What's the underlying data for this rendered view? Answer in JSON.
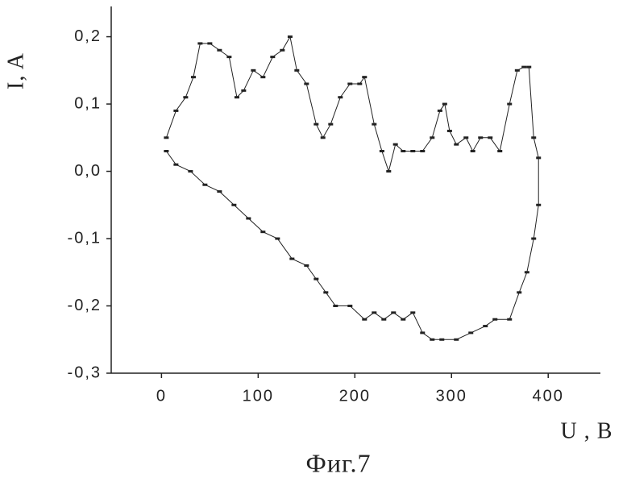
{
  "chart_data": {
    "type": "line",
    "xlabel": "U , B",
    "ylabel": "I, A",
    "caption": "Фиг.7",
    "xlim": [
      -52,
      454
    ],
    "ylim": [
      -0.3,
      0.245
    ],
    "xticks": [
      0,
      100,
      200,
      300,
      400
    ],
    "yticks": [
      {
        "value": -0.3,
        "label": "-0,3"
      },
      {
        "value": -0.2,
        "label": "-0,2"
      },
      {
        "value": -0.1,
        "label": "-0,1"
      },
      {
        "value": 0.0,
        "label": "0,0"
      },
      {
        "value": 0.1,
        "label": "0,1"
      },
      {
        "value": 0.2,
        "label": "0,2"
      }
    ],
    "x": [
      5,
      15,
      25,
      33,
      40,
      50,
      60,
      70,
      78,
      85,
      95,
      105,
      115,
      125,
      133,
      140,
      150,
      160,
      167,
      175,
      185,
      195,
      205,
      210,
      220,
      228,
      235,
      242,
      250,
      260,
      270,
      280,
      288,
      293,
      298,
      305,
      315,
      322,
      330,
      340,
      350,
      360,
      368,
      375,
      380,
      385,
      390,
      390,
      385,
      378,
      370,
      360,
      345,
      335,
      320,
      305,
      290,
      280,
      270,
      260,
      250,
      240,
      230,
      220,
      210,
      195,
      180,
      170,
      160,
      150,
      135,
      120,
      105,
      90,
      75,
      60,
      45,
      30,
      15,
      5
    ],
    "series": [
      {
        "color": "#222222",
        "values": [
          0.05,
          0.09,
          0.11,
          0.14,
          0.19,
          0.19,
          0.18,
          0.17,
          0.11,
          0.12,
          0.15,
          0.14,
          0.17,
          0.18,
          0.2,
          0.15,
          0.13,
          0.07,
          0.05,
          0.07,
          0.11,
          0.13,
          0.13,
          0.14,
          0.07,
          0.03,
          0.0,
          0.04,
          0.03,
          0.03,
          0.03,
          0.05,
          0.09,
          0.1,
          0.06,
          0.04,
          0.05,
          0.03,
          0.05,
          0.05,
          0.03,
          0.1,
          0.15,
          0.155,
          0.155,
          0.05,
          0.02,
          -0.05,
          -0.1,
          -0.15,
          -0.18,
          -0.22,
          -0.22,
          -0.23,
          -0.24,
          -0.25,
          -0.25,
          -0.25,
          -0.24,
          -0.21,
          -0.22,
          -0.21,
          -0.22,
          -0.21,
          -0.22,
          -0.2,
          -0.2,
          -0.18,
          -0.16,
          -0.14,
          -0.13,
          -0.1,
          -0.09,
          -0.07,
          -0.05,
          -0.03,
          -0.02,
          0.0,
          0.01,
          0.03
        ]
      }
    ]
  }
}
